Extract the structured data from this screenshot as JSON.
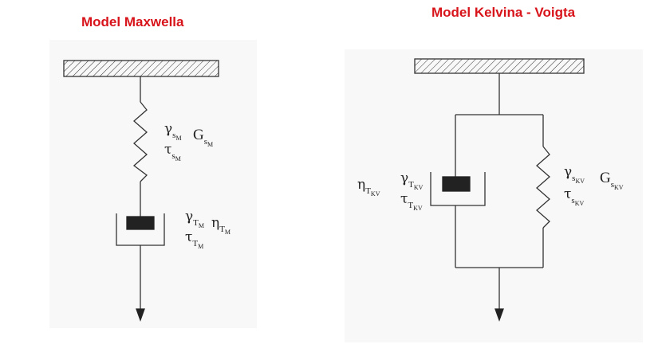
{
  "maxwell": {
    "title": "Model Maxwella",
    "spring": {
      "gamma": "γ",
      "gamma_sub": "s",
      "gamma_subsub": "M",
      "G": "G",
      "G_sub": "s",
      "G_subsub": "M",
      "tau": "τ",
      "tau_sub": "s",
      "tau_subsub": "M"
    },
    "dashpot": {
      "gamma": "γ",
      "gamma_sub": "T",
      "gamma_subsub": "M",
      "eta": "η",
      "eta_sub": "T",
      "eta_subsub": "M",
      "tau": "τ",
      "tau_sub": "T",
      "tau_subsub": "M"
    }
  },
  "kelvin": {
    "title": "Model Kelvina - Voigta",
    "dashpot": {
      "eta": "η",
      "eta_sub": "T",
      "eta_subsub": "KV",
      "gamma": "γ",
      "gamma_sub": "T",
      "gamma_subsub": "KV",
      "tau": "τ",
      "tau_sub": "T",
      "tau_subsub": "KV"
    },
    "spring": {
      "gamma": "γ",
      "gamma_sub": "s",
      "gamma_subsub": "KV",
      "G": "G",
      "G_sub": "s",
      "G_subsub": "KV",
      "tau": "τ",
      "tau_sub": "s",
      "tau_subsub": "KV"
    }
  },
  "colors": {
    "title": "#d8141b",
    "line": "#333333",
    "panel": "#f8f8f8"
  }
}
